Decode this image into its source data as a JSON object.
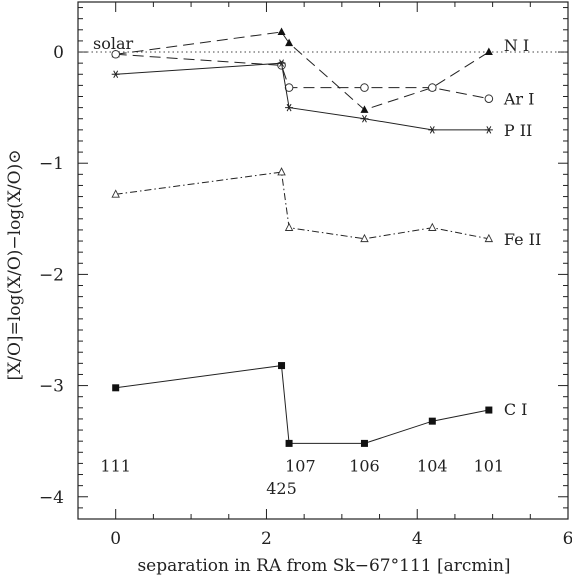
{
  "chart_data": {
    "type": "line",
    "xlabel": "separation in RA from Sk−67°111 [arcmin]",
    "ylabel": "[X/O]=log(X/O)−log(X/O)⊙",
    "xlim": [
      -0.5,
      6
    ],
    "ylim": [
      -4.2,
      0.45
    ],
    "xticks": [
      0,
      2,
      4,
      6
    ],
    "yticks": [
      0,
      -1,
      -2,
      -3,
      -4
    ],
    "xtick_labels": [
      "0",
      "2",
      "4",
      "6"
    ],
    "ytick_labels": [
      "0",
      "−1",
      "−2",
      "−3",
      "−4"
    ],
    "reference_line": {
      "y": 0,
      "style": "dotted",
      "label": "solar"
    },
    "grid": false,
    "legend": "labels at line ends",
    "series": [
      {
        "name": "N I",
        "marker": "filled-triangle",
        "line": "long-dash",
        "x": [
          0,
          2.2,
          2.3,
          3.3,
          4.2,
          4.95
        ],
        "y": [
          -0.02,
          0.18,
          0.08,
          -0.52,
          -0.32,
          0.0
        ]
      },
      {
        "name": "Ar I",
        "marker": "open-circle",
        "line": "long-dash",
        "x": [
          0,
          2.2,
          2.3,
          3.3,
          4.2,
          4.95
        ],
        "y": [
          -0.02,
          -0.12,
          -0.32,
          -0.32,
          -0.32,
          -0.42
        ]
      },
      {
        "name": "P II",
        "marker": "star",
        "line": "solid",
        "x": [
          0,
          2.2,
          2.3,
          3.3,
          4.2,
          4.95
        ],
        "y": [
          -0.2,
          -0.1,
          -0.5,
          -0.6,
          -0.7,
          -0.7
        ]
      },
      {
        "name": "Fe II",
        "marker": "open-triangle",
        "line": "dash-dot",
        "x": [
          0,
          2.2,
          2.3,
          3.3,
          4.2,
          4.95
        ],
        "y": [
          -1.28,
          -1.08,
          -1.58,
          -1.68,
          -1.58,
          -1.68
        ]
      },
      {
        "name": "C I",
        "marker": "filled-square",
        "line": "solid",
        "x": [
          0,
          2.2,
          2.3,
          3.3,
          4.2,
          4.95
        ],
        "y": [
          -3.02,
          -2.82,
          -3.52,
          -3.52,
          -3.32,
          -3.22
        ]
      }
    ],
    "annotations": [
      {
        "text": "111",
        "x": 0,
        "y": -3.72
      },
      {
        "text": "107",
        "x": 2.45,
        "y": -3.72
      },
      {
        "text": "425",
        "x": 2.2,
        "y": -3.92
      },
      {
        "text": "106",
        "x": 3.3,
        "y": -3.72
      },
      {
        "text": "104",
        "x": 4.2,
        "y": -3.72
      },
      {
        "text": "101",
        "x": 4.95,
        "y": -3.72
      }
    ]
  }
}
